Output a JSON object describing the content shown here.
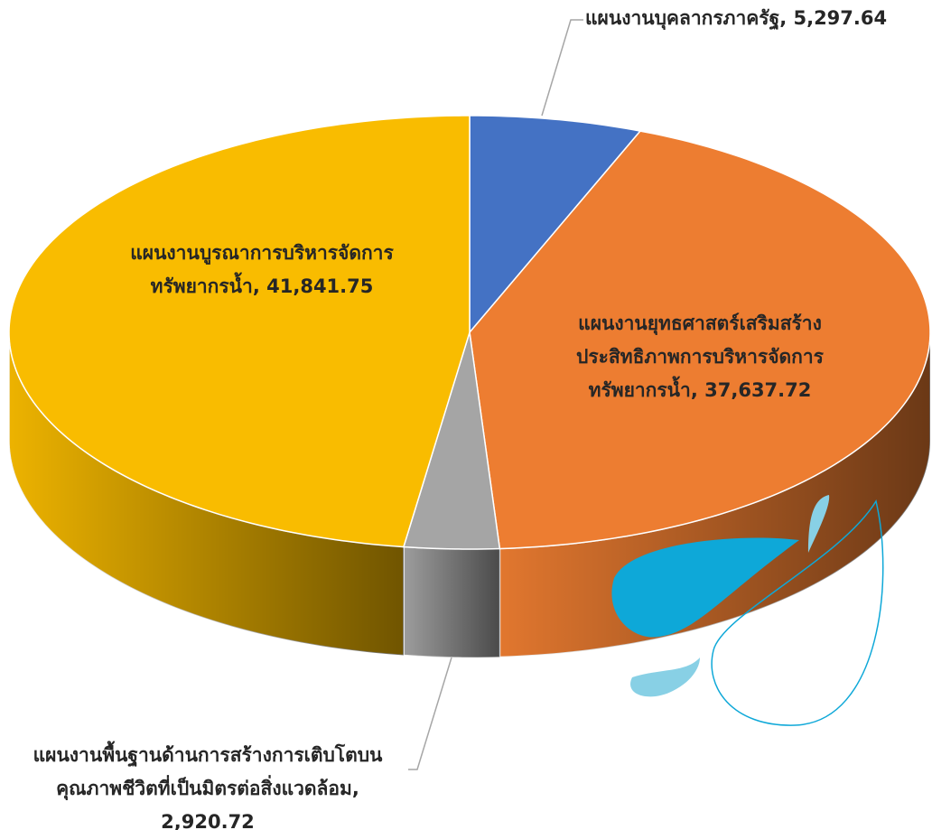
{
  "chart_data": {
    "type": "pie3d",
    "categories": [
      "แผนงานบุคลากรภาครัฐ",
      "แผนงานยุทธศาสตร์เสริมสร้างประสิทธิภาพการบริหารจัดการทรัพยากรน้ำ",
      "แผนงานพื้นฐานด้านการสร้างการเติบโตบนคุณภาพชีวิตที่เป็นมิตรต่อสิ่งแวดล้อม",
      "แผนงานบูรณาการบริหารจัดการทรัพยากรน้ำ"
    ],
    "values": [
      5297.64,
      37637.72,
      2920.72,
      41841.75
    ],
    "value_labels": [
      "5,297.64",
      "37,637.72",
      "2,920.72",
      "41,841.75"
    ],
    "colors": [
      "#4472c4",
      "#ed7d31",
      "#a5a5a5",
      "#f9bc00"
    ]
  }
}
